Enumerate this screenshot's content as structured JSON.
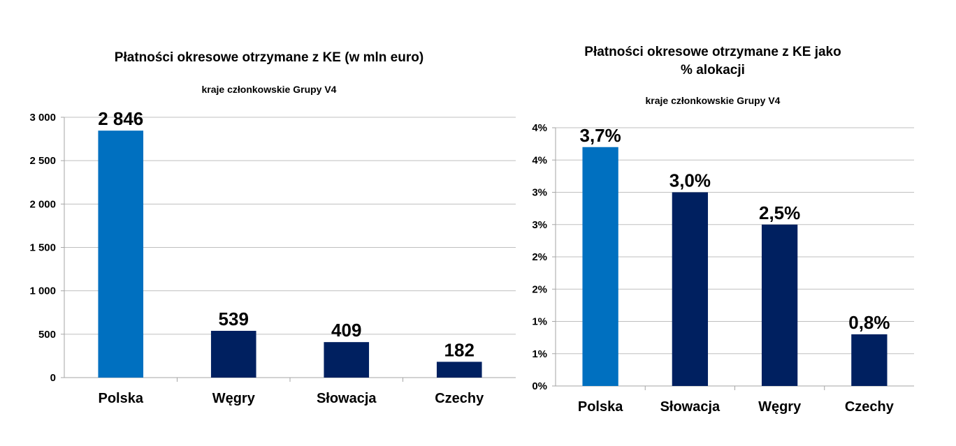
{
  "colors": {
    "highlight": "#0070C0",
    "series": "#002060",
    "grid": "#BFBFBF",
    "axis": "#A6A6A6"
  },
  "chart_data": [
    {
      "type": "bar",
      "title": "Płatności okresowe otrzymane z KE (w mln euro)",
      "subtitle": "kraje członkowskie Grupy V4",
      "categories": [
        "Polska",
        "Węgry",
        "Słowacja",
        "Czechy"
      ],
      "values": [
        2846,
        539,
        409,
        182
      ],
      "value_labels": [
        "2 846",
        "539",
        "409",
        "182"
      ],
      "yticks": [
        0,
        500,
        1000,
        1500,
        2000,
        2500,
        3000
      ],
      "ytick_labels": [
        "0",
        "500",
        "1 000",
        "1 500",
        "2 000",
        "2 500",
        "3 000"
      ],
      "ylim": [
        0,
        3000
      ],
      "grid": true,
      "highlight_index": 0
    },
    {
      "type": "bar",
      "title": "Płatności okresowe otrzymane z KE jako % alokacji",
      "title_lines": [
        "Płatności okresowe otrzymane z KE jako",
        "% alokacji"
      ],
      "subtitle": "kraje członkowskie Grupy V4",
      "categories": [
        "Polska",
        "Słowacja",
        "Węgry",
        "Czechy"
      ],
      "values": [
        3.7,
        3.0,
        2.5,
        0.8
      ],
      "value_labels": [
        "3,7%",
        "3,0%",
        "2,5%",
        "0,8%"
      ],
      "yticks": [
        0,
        0.5,
        1,
        1.5,
        2,
        2.5,
        3,
        3.5,
        4
      ],
      "ytick_labels": [
        "0%",
        "1%",
        "1%",
        "2%",
        "2%",
        "3%",
        "3%",
        "4%",
        "4%"
      ],
      "ylim": [
        0,
        4
      ],
      "grid": true,
      "highlight_index": 0
    }
  ]
}
